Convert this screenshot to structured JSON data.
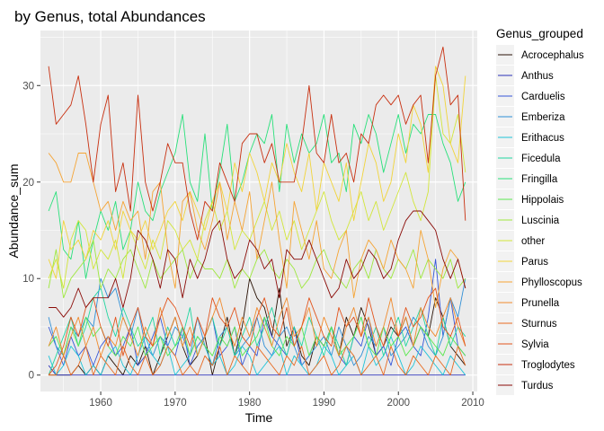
{
  "chart_data": {
    "type": "line",
    "title": "by Genus, total Abundances",
    "xlabel": "Time",
    "ylabel": "Abundance_sum",
    "xlim": [
      1951.9,
      2010.6
    ],
    "ylim": [
      -1.7,
      35.7
    ],
    "xticks": [
      1960,
      1970,
      1980,
      1990,
      2000,
      2010
    ],
    "yticks": [
      0,
      10,
      20,
      30
    ],
    "grid": true,
    "legend_title": "Genus_grouped",
    "legend_position": "right",
    "x": [
      1953,
      1954,
      1955,
      1956,
      1957,
      1958,
      1959,
      1960,
      1961,
      1962,
      1963,
      1964,
      1965,
      1966,
      1967,
      1968,
      1969,
      1970,
      1971,
      1972,
      1973,
      1974,
      1975,
      1976,
      1977,
      1978,
      1979,
      1980,
      1981,
      1982,
      1983,
      1984,
      1985,
      1986,
      1987,
      1988,
      1989,
      1990,
      1991,
      1992,
      1993,
      1994,
      1995,
      1996,
      1997,
      1998,
      1999,
      2000,
      2001,
      2002,
      2003,
      2004,
      2005,
      2006,
      2007,
      2008,
      2009
    ],
    "series": [
      {
        "name": "Acrocephalus",
        "color": "#2a1306",
        "values": [
          0,
          0,
          0,
          0,
          1,
          0,
          1,
          0,
          2,
          1,
          0,
          2,
          1,
          3,
          0,
          2,
          4,
          6,
          3,
          1,
          2,
          4,
          0,
          3,
          6,
          2,
          5,
          10,
          8,
          7,
          4,
          9,
          3,
          5,
          2,
          1,
          4,
          3,
          5,
          2,
          6,
          4,
          7,
          5,
          2,
          3,
          5,
          4,
          6,
          3,
          5,
          4,
          8,
          6,
          3,
          2,
          1
        ]
      },
      {
        "name": "Anthus",
        "color": "#2b30b8",
        "values": [
          1,
          0,
          0,
          0,
          0,
          0,
          0,
          0,
          0,
          0,
          0,
          0,
          0,
          0,
          0,
          0,
          0,
          0,
          0,
          0,
          0,
          0,
          0,
          0,
          0,
          0,
          0,
          0,
          0,
          0,
          0,
          0,
          0,
          0,
          0,
          0,
          0,
          0,
          0,
          0,
          0,
          0,
          0,
          0,
          0,
          0,
          0,
          0,
          0,
          0,
          0,
          0,
          0,
          0,
          0,
          0,
          0
        ]
      },
      {
        "name": "Carduelis",
        "color": "#3556d8",
        "values": [
          5,
          3,
          1,
          4,
          2,
          3,
          1,
          3,
          4,
          2,
          3,
          5,
          1,
          2,
          4,
          6,
          3,
          2,
          5,
          1,
          3,
          4,
          6,
          2,
          3,
          5,
          1,
          3,
          2,
          6,
          4,
          3,
          2,
          5,
          1,
          2,
          4,
          3,
          5,
          2,
          1,
          4,
          3,
          6,
          2,
          3,
          1,
          4,
          5,
          3,
          2,
          6,
          12,
          4,
          8,
          3,
          2
        ]
      },
      {
        "name": "Emberiza",
        "color": "#2f8fd6",
        "values": [
          6,
          3,
          2,
          5,
          4,
          6,
          5,
          10,
          8,
          9,
          6,
          4,
          7,
          3,
          2,
          4,
          3,
          5,
          4,
          2,
          6,
          3,
          1,
          4,
          5,
          2,
          3,
          4,
          6,
          3,
          2,
          4,
          5,
          3,
          1,
          2,
          3,
          4,
          2,
          5,
          3,
          1,
          2,
          4,
          3,
          5,
          2,
          3,
          4,
          6,
          5,
          3,
          2,
          4,
          8,
          6,
          10
        ]
      },
      {
        "name": "Erithacus",
        "color": "#1ec4d8",
        "values": [
          2,
          0,
          1,
          3,
          2,
          0,
          1,
          0,
          2,
          3,
          1,
          0,
          2,
          4,
          2,
          1,
          3,
          0,
          1,
          2,
          4,
          3,
          1,
          2,
          0,
          1,
          3,
          2,
          0,
          1,
          2,
          3,
          0,
          2,
          1,
          0,
          1,
          3,
          2,
          0,
          1,
          2,
          0,
          3,
          1,
          2,
          4,
          2,
          0,
          1,
          3,
          2,
          1,
          0,
          2,
          1,
          0
        ]
      },
      {
        "name": "Ficedula",
        "color": "#20d6a0",
        "values": [
          0,
          2,
          4,
          6,
          3,
          5,
          8,
          9,
          6,
          4,
          7,
          5,
          3,
          4,
          6,
          2,
          5,
          3,
          4,
          7,
          2,
          4,
          6,
          3,
          5,
          2,
          4,
          6,
          3,
          5,
          7,
          4,
          2,
          5,
          3,
          6,
          4,
          2,
          5,
          3,
          1,
          4,
          6,
          3,
          5,
          2,
          4,
          6,
          3,
          5,
          7,
          4,
          2,
          6,
          3,
          5,
          4
        ]
      },
      {
        "name": "Fringilla",
        "color": "#28e07a",
        "values": [
          17,
          19,
          13,
          12,
          16,
          10,
          14,
          17,
          15,
          18,
          13,
          15,
          20,
          17,
          16,
          19,
          21,
          23,
          27,
          20,
          18,
          25,
          17,
          21,
          26,
          18,
          20,
          23,
          25,
          24,
          27,
          19,
          26,
          22,
          25,
          23,
          24,
          27,
          22,
          23,
          19,
          26,
          24,
          27,
          25,
          21,
          24,
          27,
          23,
          26,
          25,
          27,
          27,
          24,
          22,
          18,
          20
        ]
      },
      {
        "name": "Hippolais",
        "color": "#5be850",
        "values": [
          3,
          4,
          2,
          5,
          3,
          6,
          4,
          5,
          3,
          2,
          4,
          3,
          5,
          2,
          3,
          4,
          2,
          3,
          5,
          2,
          4,
          3,
          2,
          4,
          3,
          5,
          2,
          3,
          4,
          6,
          3,
          2,
          4,
          3,
          5,
          2,
          4,
          3,
          5,
          2,
          3,
          4,
          6,
          3,
          2,
          5,
          3,
          4,
          2,
          3,
          5,
          4,
          3,
          2,
          4,
          3,
          2
        ]
      },
      {
        "name": "Luscinia",
        "color": "#9ee83e",
        "values": [
          9,
          13,
          8,
          10,
          11,
          12,
          14,
          9,
          11,
          10,
          12,
          13,
          11,
          9,
          12,
          10,
          11,
          12,
          13,
          10,
          12,
          11,
          11,
          10,
          12,
          9,
          11,
          10,
          12,
          13,
          11,
          10,
          12,
          11,
          9,
          10,
          12,
          13,
          11,
          10,
          9,
          11,
          12,
          10,
          13,
          11,
          10,
          12,
          11,
          13,
          10,
          12,
          11,
          10,
          12,
          9,
          10
        ]
      },
      {
        "name": "other",
        "color": "#d2e63a",
        "values": [
          10,
          12,
          9,
          14,
          16,
          15,
          11,
          13,
          12,
          14,
          10,
          15,
          13,
          11,
          14,
          12,
          16,
          15,
          13,
          14,
          12,
          16,
          18,
          15,
          17,
          13,
          15,
          14,
          16,
          18,
          15,
          17,
          14,
          16,
          13,
          15,
          17,
          19,
          16,
          14,
          15,
          17,
          19,
          16,
          18,
          15,
          17,
          19,
          21,
          18,
          16,
          19,
          31,
          25,
          24,
          27,
          21
        ]
      },
      {
        "name": "Parus",
        "color": "#f1d43a",
        "values": [
          12,
          10,
          16,
          13,
          14,
          12,
          15,
          14,
          16,
          13,
          17,
          15,
          14,
          16,
          13,
          15,
          17,
          18,
          16,
          19,
          17,
          15,
          18,
          20,
          17,
          22,
          19,
          23,
          21,
          18,
          22,
          20,
          24,
          21,
          19,
          23,
          17,
          22,
          20,
          18,
          22,
          16,
          20,
          24,
          22,
          18,
          20,
          25,
          22,
          28,
          26,
          21,
          32,
          30,
          24,
          22,
          31
        ]
      },
      {
        "name": "Phylloscopus",
        "color": "#f5a434",
        "values": [
          23,
          22,
          20,
          20,
          23,
          23,
          20,
          17,
          18,
          15,
          18,
          16,
          17,
          12,
          19,
          20,
          13,
          9,
          18,
          19,
          15,
          13,
          16,
          20,
          14,
          18,
          15,
          19,
          12,
          16,
          20,
          14,
          9,
          18,
          15,
          12,
          16,
          11,
          10,
          13,
          15,
          8,
          12,
          14,
          13,
          11,
          14,
          12,
          11,
          9,
          15,
          12,
          7,
          11,
          13,
          12,
          9
        ]
      },
      {
        "name": "Prunella",
        "color": "#f08a2c",
        "values": [
          3,
          5,
          2,
          4,
          6,
          3,
          5,
          2,
          4,
          3,
          6,
          4,
          2,
          5,
          3,
          7,
          4,
          6,
          3,
          5,
          2,
          4,
          6,
          8,
          5,
          3,
          6,
          4,
          7,
          5,
          3,
          6,
          8,
          4,
          5,
          7,
          3,
          6,
          4,
          2,
          5,
          7,
          4,
          6,
          3,
          5,
          8,
          4,
          6,
          3,
          7,
          5,
          4,
          6,
          8,
          5,
          3
        ]
      },
      {
        "name": "Sturnus",
        "color": "#e86a20",
        "values": [
          0,
          0,
          2,
          0,
          1,
          3,
          0,
          2,
          1,
          0,
          3,
          1,
          0,
          2,
          0,
          1,
          3,
          2,
          0,
          1,
          0,
          2,
          1,
          3,
          0,
          2,
          1,
          0,
          3,
          2,
          1,
          0,
          2,
          1,
          3,
          0,
          1,
          2,
          0,
          1,
          3,
          2,
          0,
          1,
          2,
          0,
          3,
          1,
          0,
          2,
          1,
          0,
          2,
          1,
          0,
          3,
          1
        ]
      },
      {
        "name": "Sylvia",
        "color": "#e2541c",
        "values": [
          0,
          1,
          3,
          6,
          4,
          7,
          8,
          5,
          3,
          6,
          2,
          5,
          7,
          4,
          3,
          6,
          8,
          7,
          5,
          3,
          6,
          4,
          8,
          6,
          5,
          7,
          4,
          3,
          6,
          8,
          5,
          4,
          7,
          3,
          5,
          8,
          6,
          4,
          3,
          7,
          5,
          6,
          4,
          8,
          5,
          3,
          6,
          4,
          7,
          5,
          6,
          8,
          9,
          5,
          4,
          6,
          3
        ]
      },
      {
        "name": "Troglodytes",
        "color": "#c83010",
        "values": [
          32,
          26,
          27,
          28,
          31,
          26,
          20,
          26,
          29,
          19,
          22,
          17,
          29,
          20,
          17,
          20,
          24,
          22,
          22,
          17,
          14,
          18,
          17,
          22,
          20,
          18,
          24,
          25,
          25,
          22,
          24,
          20,
          20,
          20,
          24,
          30,
          23,
          22,
          27,
          22,
          23,
          20,
          25,
          24,
          28,
          29,
          28,
          29,
          26,
          28,
          29,
          22,
          31,
          34,
          28,
          29,
          16
        ]
      },
      {
        "name": "Turdus",
        "color": "#8a0a06",
        "values": [
          7,
          7,
          6,
          7,
          9,
          7,
          8,
          8,
          8,
          10,
          7,
          10,
          15,
          14,
          12,
          9,
          13,
          12,
          8,
          12,
          10,
          12,
          15,
          16,
          12,
          10,
          11,
          14,
          13,
          11,
          12,
          8,
          13,
          12,
          12,
          14,
          12,
          10,
          8,
          9,
          12,
          10,
          11,
          13,
          12,
          10,
          11,
          14,
          16,
          17,
          17,
          16,
          15,
          12,
          10,
          12,
          9
        ]
      }
    ]
  }
}
